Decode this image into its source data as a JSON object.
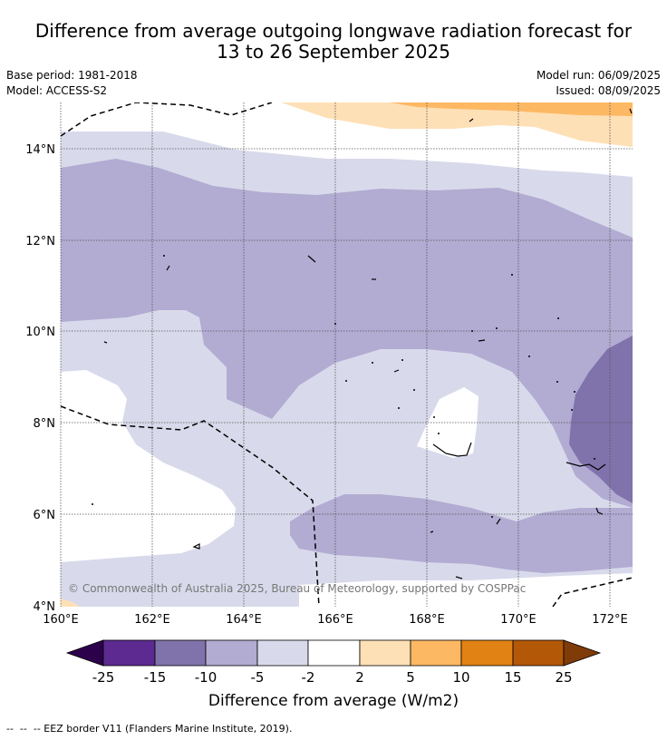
{
  "header": {
    "title_line1": "Difference from average outgoing longwave radiation forecast for",
    "title_line2": "13 to 26 September 2025",
    "base_period": "Base period: 1981-2018",
    "model": "Model: ACCESS-S2",
    "model_run": "Model run: 06/09/2025",
    "issued": "Issued: 08/09/2025"
  },
  "map": {
    "lat_labels": [
      "14°N",
      "12°N",
      "10°N",
      "8°N",
      "6°N",
      "4°N"
    ],
    "lon_labels": [
      "160°E",
      "162°E",
      "164°E",
      "166°E",
      "168°E",
      "170°E",
      "172°E"
    ],
    "copyright": "© Commonwealth of Australia 2025, Bureau of Meteorology, supported by COSPPac"
  },
  "colorbar": {
    "ticks": [
      "-25",
      "-15",
      "-10",
      "-5",
      "-2",
      "2",
      "5",
      "10",
      "15",
      "25"
    ],
    "label": "Difference from average (W/m2)",
    "colors": [
      "#2d004b",
      "#5c2a90",
      "#8073ac",
      "#b2abd2",
      "#d8daeb",
      "#ffffff",
      "#fee0b6",
      "#fdb863",
      "#e08214",
      "#b35806",
      "#7f3b08"
    ]
  },
  "footnote": "--  --  -- EEZ border V11 (Flanders Marine Institute, 2019)."
}
